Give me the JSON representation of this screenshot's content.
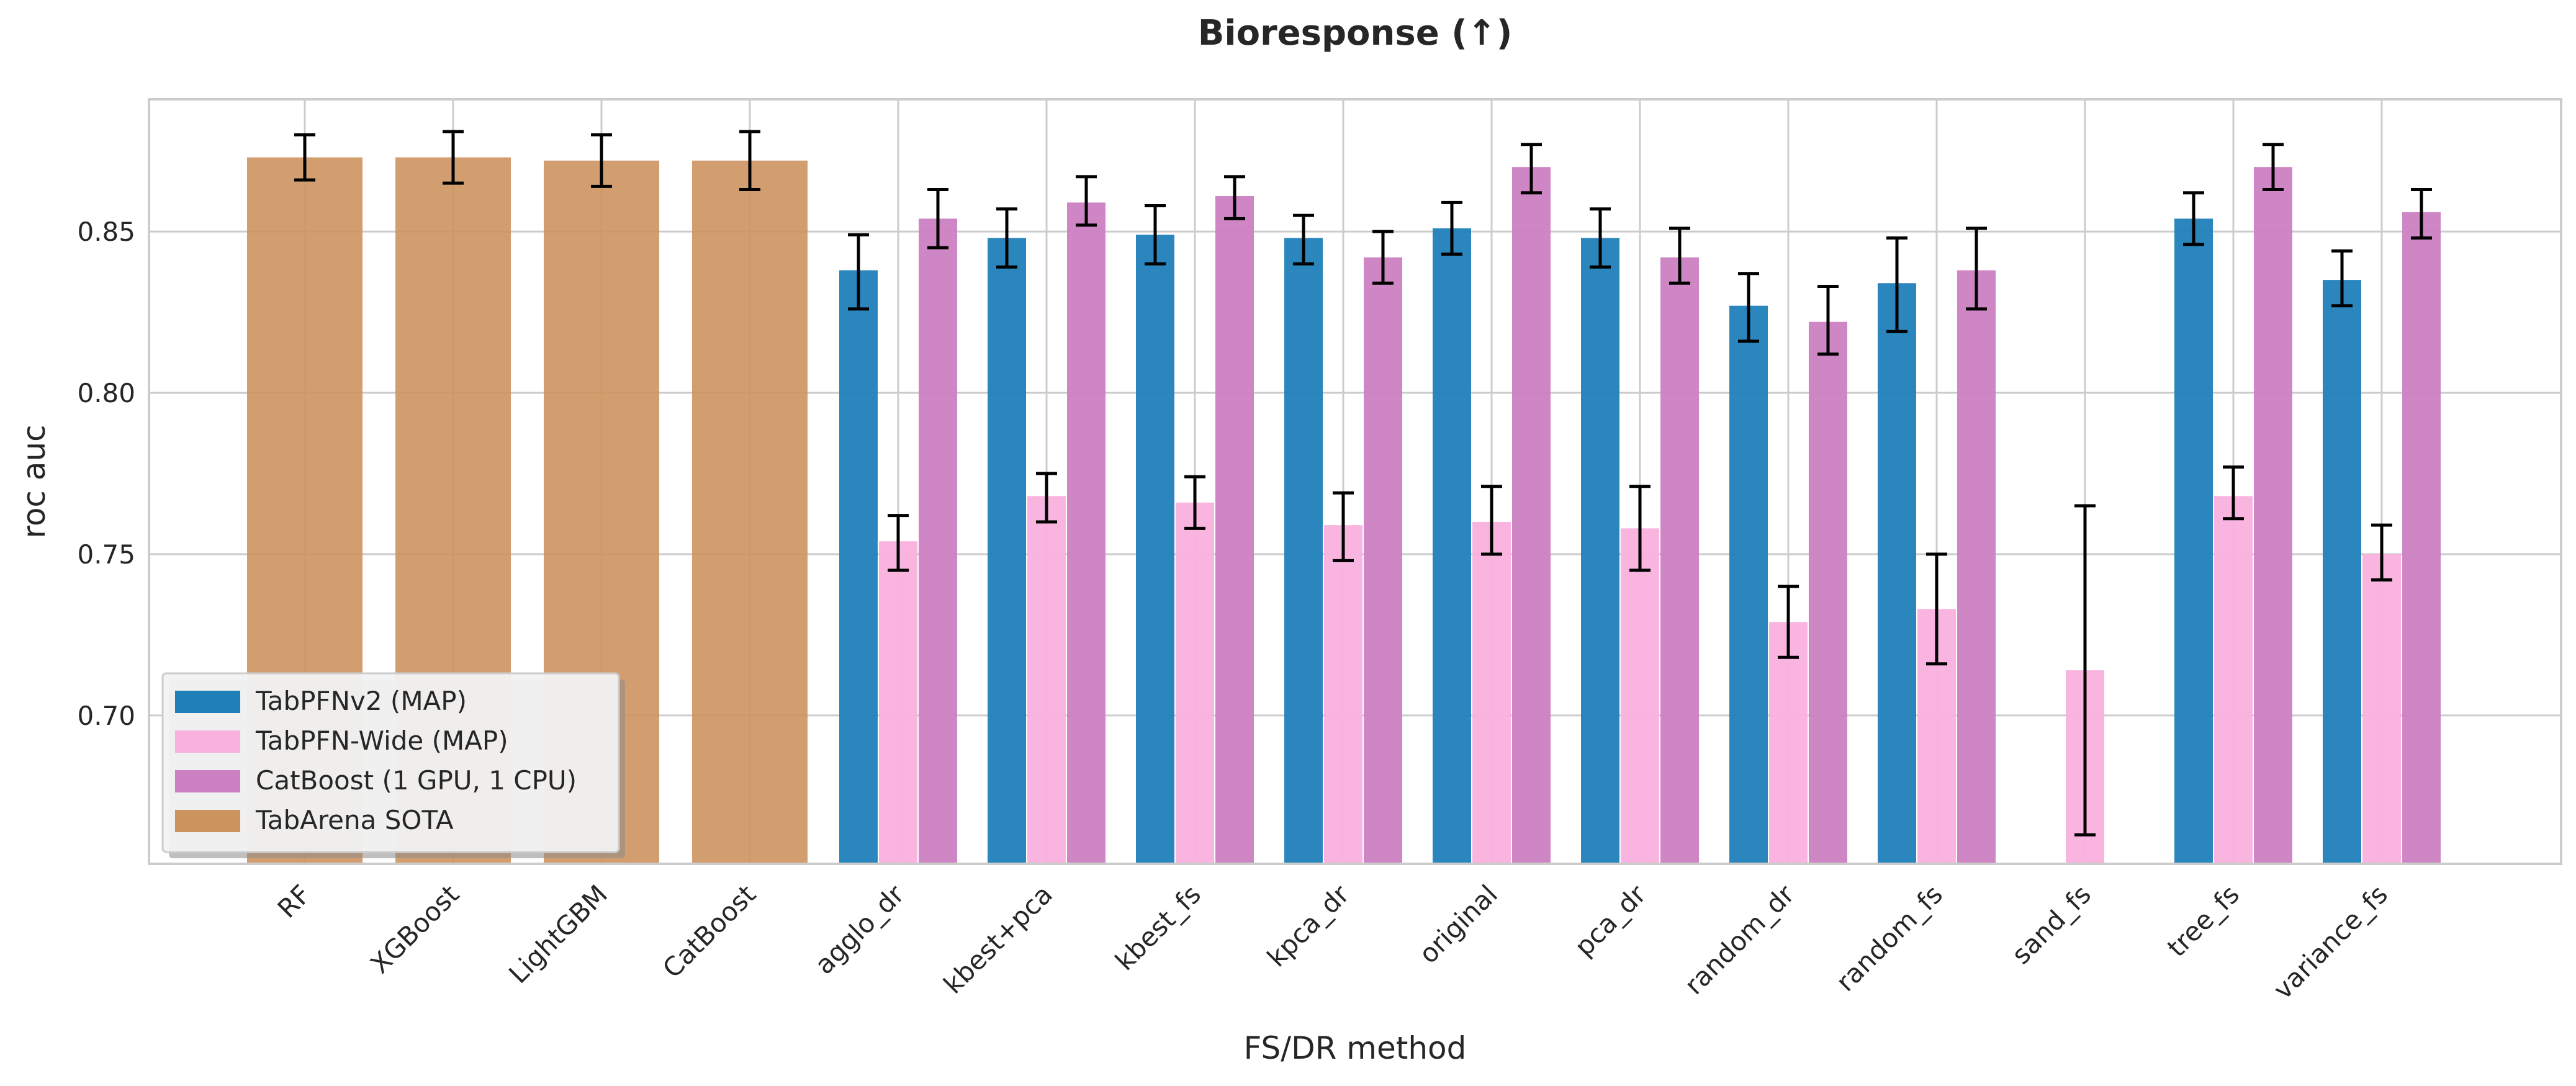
{
  "chart_data": {
    "type": "bar",
    "title": "Bioresponse (↑)",
    "xlabel": "FS/DR method",
    "ylabel": "roc auc",
    "ylim": [
      0.654,
      0.891
    ],
    "yticks": [
      "0.70",
      "0.75",
      "0.80",
      "0.85"
    ],
    "grid": true,
    "legend_position": "lower-left",
    "categories": [
      "RF",
      "XGBoost",
      "LightGBM",
      "CatBoost",
      "agglo_dr",
      "kbest+pca",
      "kbest_fs",
      "kpca_dr",
      "original",
      "pca_dr",
      "random_dr",
      "random_fs",
      "sand_fs",
      "tree_fs",
      "variance_fs"
    ],
    "series": [
      {
        "name": "TabPFNv2 (MAP)",
        "color": "#1f7fb8",
        "values": [
          null,
          null,
          null,
          null,
          0.838,
          0.848,
          0.849,
          0.848,
          0.851,
          0.848,
          0.827,
          0.834,
          null,
          0.854,
          0.835
        ],
        "err_low": [
          null,
          null,
          null,
          null,
          0.826,
          0.839,
          0.84,
          0.84,
          0.843,
          0.839,
          0.816,
          0.819,
          null,
          0.846,
          0.827
        ],
        "err_high": [
          null,
          null,
          null,
          null,
          0.849,
          0.857,
          0.858,
          0.855,
          0.859,
          0.857,
          0.837,
          0.848,
          null,
          0.862,
          0.844
        ]
      },
      {
        "name": "TabPFN-Wide (MAP)",
        "color": "#f9b1dd",
        "values": [
          null,
          null,
          null,
          null,
          0.754,
          0.768,
          0.766,
          0.759,
          0.76,
          0.758,
          0.729,
          0.733,
          0.714,
          0.768,
          0.75
        ],
        "err_low": [
          null,
          null,
          null,
          null,
          0.745,
          0.76,
          0.758,
          0.748,
          0.75,
          0.745,
          0.718,
          0.716,
          0.663,
          0.761,
          0.742
        ],
        "err_high": [
          null,
          null,
          null,
          null,
          0.762,
          0.775,
          0.774,
          0.769,
          0.771,
          0.771,
          0.74,
          0.75,
          0.765,
          0.777,
          0.759
        ]
      },
      {
        "name": "CatBoost (1 GPU, 1 CPU)",
        "color": "#cc7fc2",
        "values": [
          null,
          null,
          null,
          null,
          0.854,
          0.859,
          0.861,
          0.842,
          0.87,
          0.842,
          0.822,
          0.838,
          null,
          0.87,
          0.856
        ],
        "err_low": [
          null,
          null,
          null,
          null,
          0.845,
          0.852,
          0.854,
          0.834,
          0.862,
          0.834,
          0.812,
          0.826,
          null,
          0.863,
          0.848
        ],
        "err_high": [
          null,
          null,
          null,
          null,
          0.863,
          0.867,
          0.867,
          0.85,
          0.877,
          0.851,
          0.833,
          0.851,
          null,
          0.877,
          0.863
        ]
      },
      {
        "name": "TabArena SOTA",
        "color": "#cd935f",
        "values": [
          0.873,
          0.873,
          0.872,
          0.872,
          null,
          null,
          null,
          null,
          null,
          null,
          null,
          null,
          null,
          null,
          null
        ],
        "err_low": [
          0.866,
          0.865,
          0.864,
          0.863,
          null,
          null,
          null,
          null,
          null,
          null,
          null,
          null,
          null,
          null,
          null
        ],
        "err_high": [
          0.88,
          0.881,
          0.88,
          0.881,
          null,
          null,
          null,
          null,
          null,
          null,
          null,
          null,
          null,
          null,
          null
        ]
      }
    ]
  }
}
